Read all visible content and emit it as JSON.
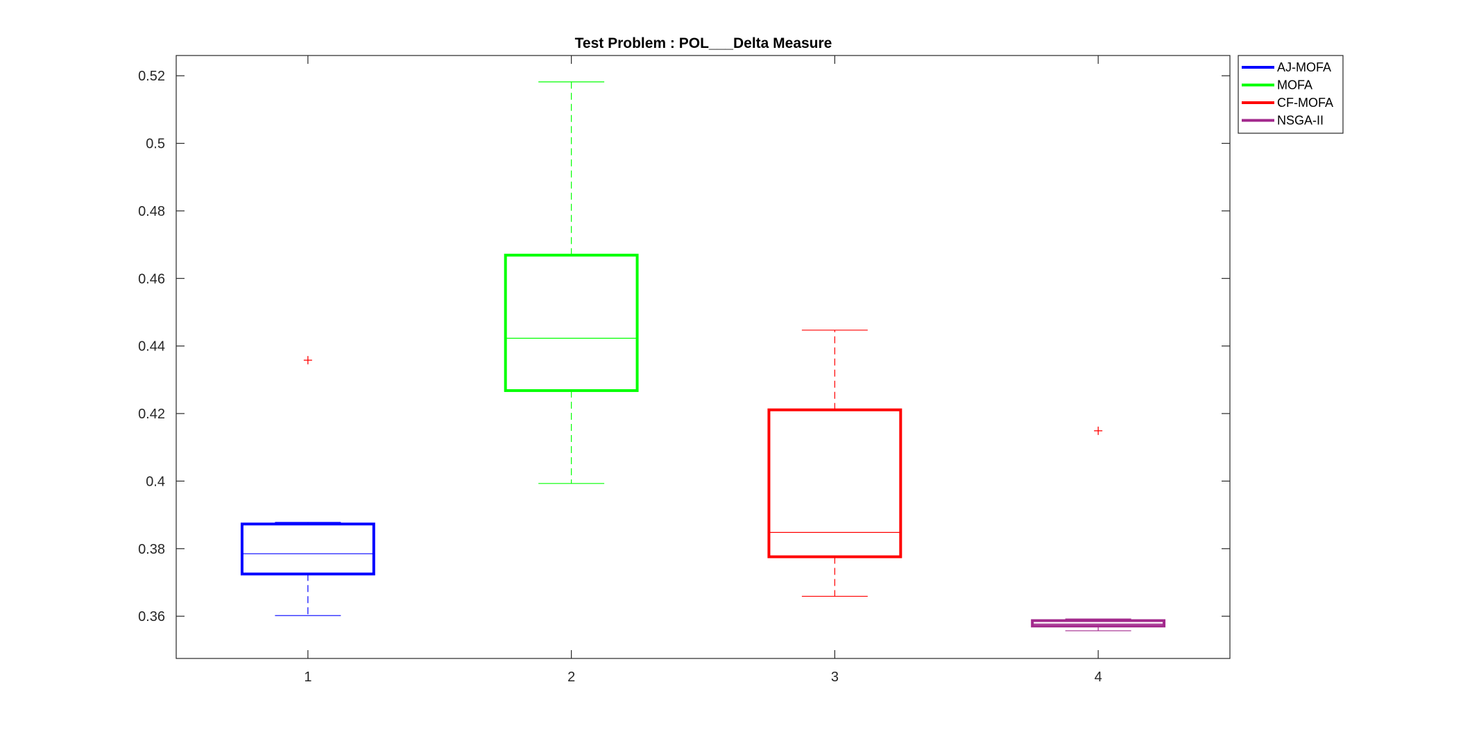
{
  "chart_data": {
    "type": "boxplot",
    "title": "Test Problem : POL___Delta Measure",
    "xlabel": "",
    "ylabel": "",
    "categories": [
      "1",
      "2",
      "3",
      "4"
    ],
    "ylim": [
      0.3475,
      0.526
    ],
    "yticks": [
      0.36,
      0.38,
      0.4,
      0.42,
      0.44,
      0.46,
      0.48,
      0.5,
      0.52
    ],
    "ytick_labels": [
      "0.36",
      "0.38",
      "0.4",
      "0.42",
      "0.44",
      "0.46",
      "0.48",
      "0.5",
      "0.52"
    ],
    "grid": false,
    "legend_position": "outside-top-right",
    "series": [
      {
        "name": "AJ-MOFA",
        "color": "#0000ff",
        "whisker_low": 0.3602,
        "q1": 0.3725,
        "median": 0.3785,
        "q3": 0.3873,
        "whisker_high": 0.3878,
        "outliers": [
          0.4358
        ]
      },
      {
        "name": "MOFA",
        "color": "#00ff00",
        "whisker_low": 0.3993,
        "q1": 0.4268,
        "median": 0.4423,
        "q3": 0.4669,
        "whisker_high": 0.5182,
        "outliers": []
      },
      {
        "name": "CF-MOFA",
        "color": "#ff0000",
        "whisker_low": 0.3659,
        "q1": 0.3776,
        "median": 0.3848,
        "q3": 0.4211,
        "whisker_high": 0.4447,
        "outliers": []
      },
      {
        "name": "NSGA-II",
        "color": "#a2288c",
        "whisker_low": 0.3557,
        "q1": 0.3571,
        "median": 0.3577,
        "q3": 0.3587,
        "whisker_high": 0.3592,
        "outliers": [
          0.4149
        ]
      }
    ],
    "outlier_color": "#ff0000",
    "outlier_marker": "+"
  }
}
